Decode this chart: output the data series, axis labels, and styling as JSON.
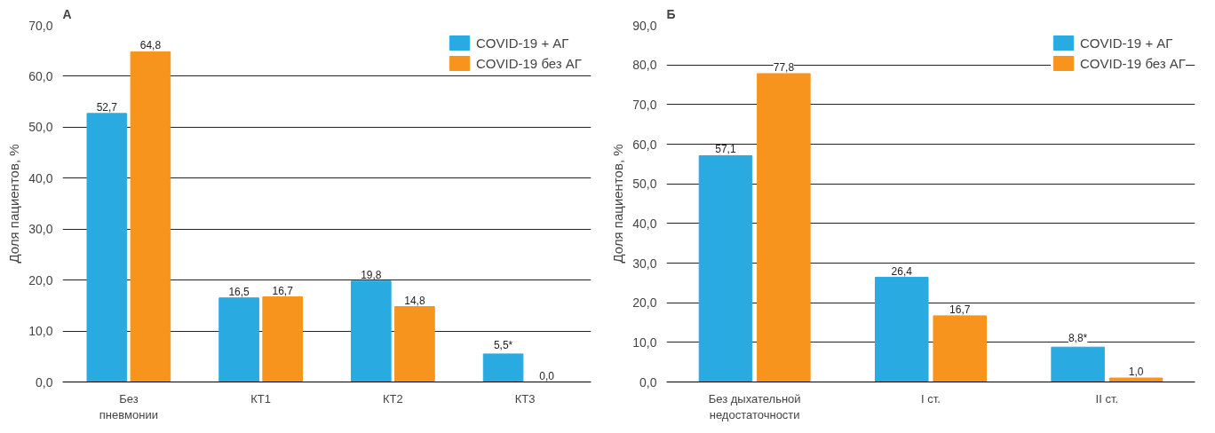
{
  "chart_data": [
    {
      "type": "bar",
      "title": "А",
      "ylabel": "Доля пациентов, %",
      "categories": [
        "Без\nпневмонии",
        "КТ1",
        "КТ2",
        "КТ3"
      ],
      "series": [
        {
          "name": "COVID-19 + АГ",
          "color": "#29abe2",
          "values": [
            52.7,
            16.5,
            19.8,
            5.5
          ],
          "value_labels": [
            "52,7",
            "16,5",
            "19,8",
            "5,5*"
          ]
        },
        {
          "name": "COVID-19 без АГ",
          "color": "#f7941d",
          "values": [
            64.8,
            16.7,
            14.8,
            0.0
          ],
          "value_labels": [
            "64,8",
            "16,7",
            "14,8",
            "0,0"
          ]
        }
      ],
      "ylim": [
        0,
        70
      ],
      "yticks": [
        {
          "value": 0,
          "label": "0,0"
        },
        {
          "value": 10,
          "label": "10,0"
        },
        {
          "value": 20,
          "label": "20,0"
        },
        {
          "value": 30,
          "label": "30,0"
        },
        {
          "value": 40,
          "label": "40,0"
        },
        {
          "value": 50,
          "label": "50,0"
        },
        {
          "value": 60,
          "label": "60,0"
        },
        {
          "value": 70,
          "label": "70,0"
        }
      ],
      "grid": "y",
      "legend": "top right"
    },
    {
      "type": "bar",
      "title": "Б",
      "ylabel": "Доля пациентов, %",
      "categories": [
        "Без дыхательной\nнедостаточности",
        "I ст.",
        "II ст."
      ],
      "series": [
        {
          "name": "COVID-19 + АГ",
          "color": "#29abe2",
          "values": [
            57.1,
            26.4,
            8.8
          ],
          "value_labels": [
            "57,1",
            "26,4",
            "8,8*"
          ]
        },
        {
          "name": "COVID-19 без АГ",
          "color": "#f7941d",
          "values": [
            77.8,
            16.7,
            1.0
          ],
          "value_labels": [
            "77,8",
            "16,7",
            "1,0"
          ]
        }
      ],
      "ylim": [
        0,
        90
      ],
      "yticks": [
        {
          "value": 0,
          "label": "0,0"
        },
        {
          "value": 10,
          "label": "10,0"
        },
        {
          "value": 20,
          "label": "20,0"
        },
        {
          "value": 30,
          "label": "30,0"
        },
        {
          "value": 40,
          "label": "40,0"
        },
        {
          "value": 50,
          "label": "50,0"
        },
        {
          "value": 60,
          "label": "60,0"
        },
        {
          "value": 70,
          "label": "70,0"
        },
        {
          "value": 80,
          "label": "80,0"
        },
        {
          "value": 90,
          "label": "90,0"
        }
      ],
      "grid": "y",
      "legend": "top right"
    }
  ]
}
